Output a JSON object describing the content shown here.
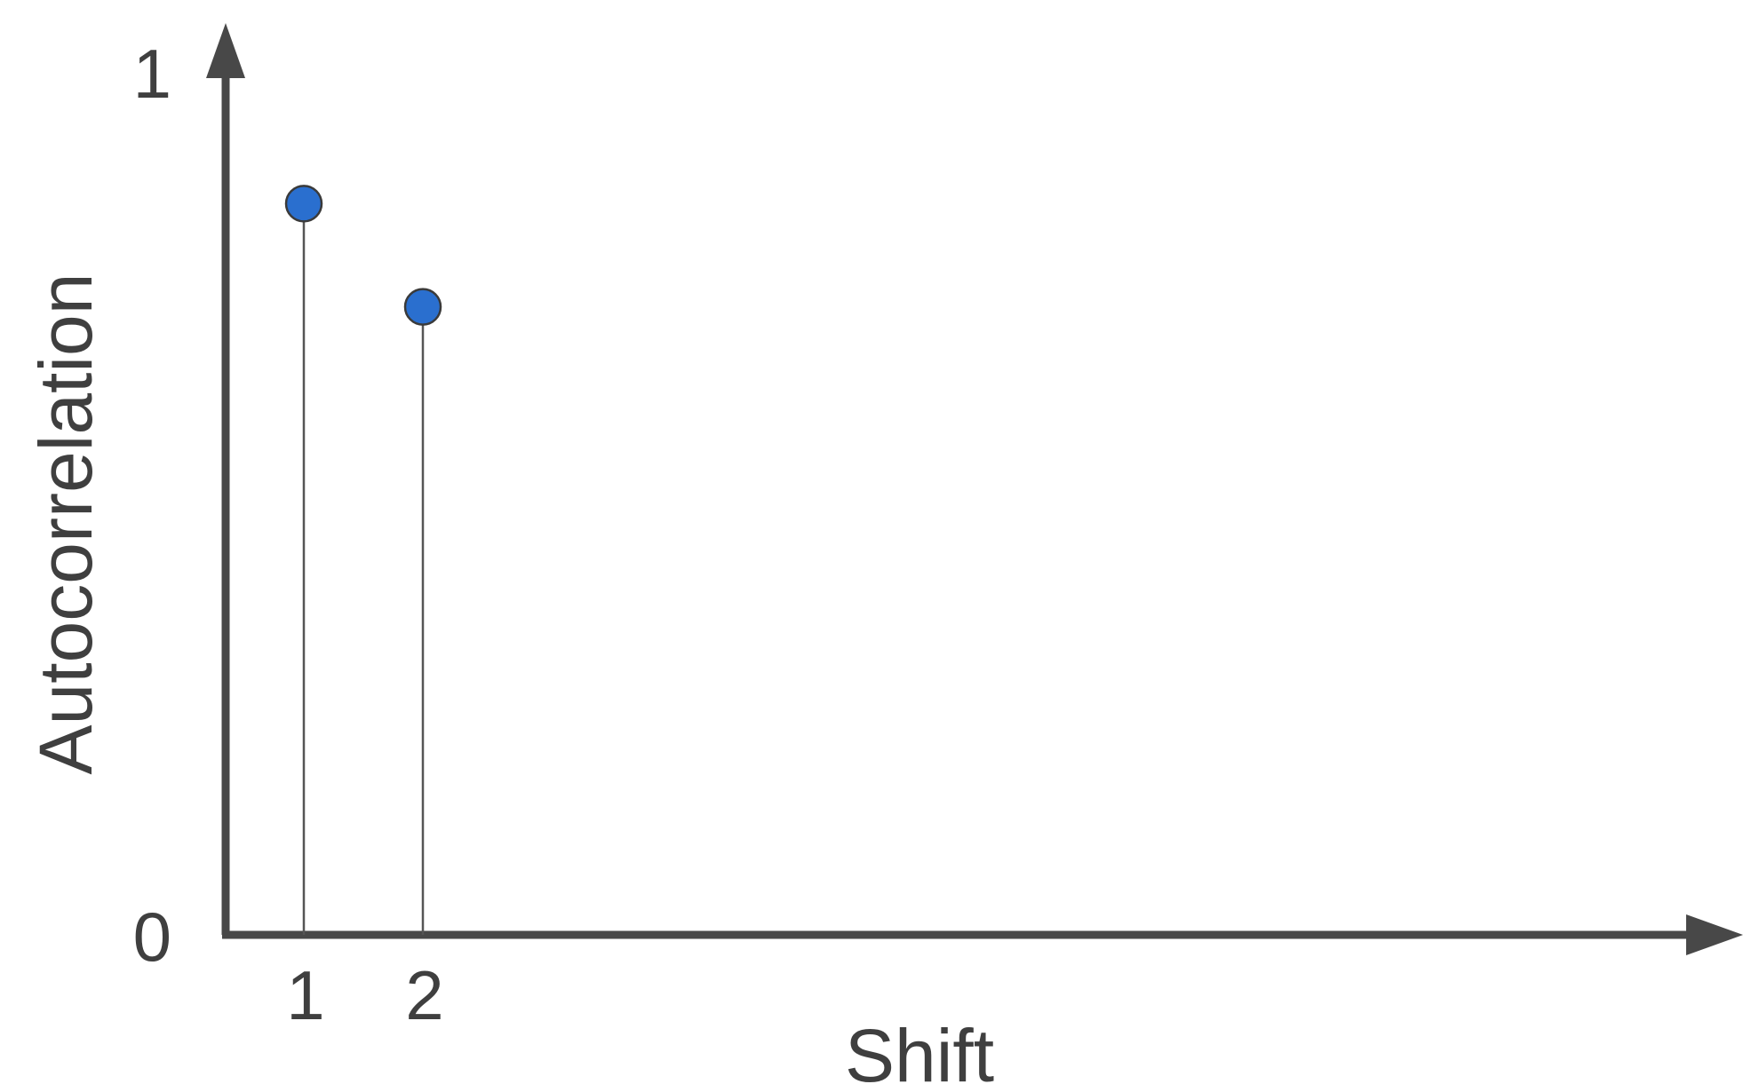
{
  "chart_data": {
    "type": "scatter",
    "style": "stem",
    "title": "",
    "xlabel": "Shift",
    "ylabel": "Autocorrelation",
    "x": [
      1,
      2
    ],
    "values": [
      0.85,
      0.73
    ],
    "ylim": [
      0,
      1
    ],
    "y_ticks": [
      "0",
      "1"
    ],
    "x_ticks": [
      "1",
      "2"
    ],
    "grid": false,
    "colors": {
      "marker": "#2a6fcf",
      "marker_edge": "#3a3a3a",
      "axis": "#484848",
      "stem": "#555555"
    }
  }
}
